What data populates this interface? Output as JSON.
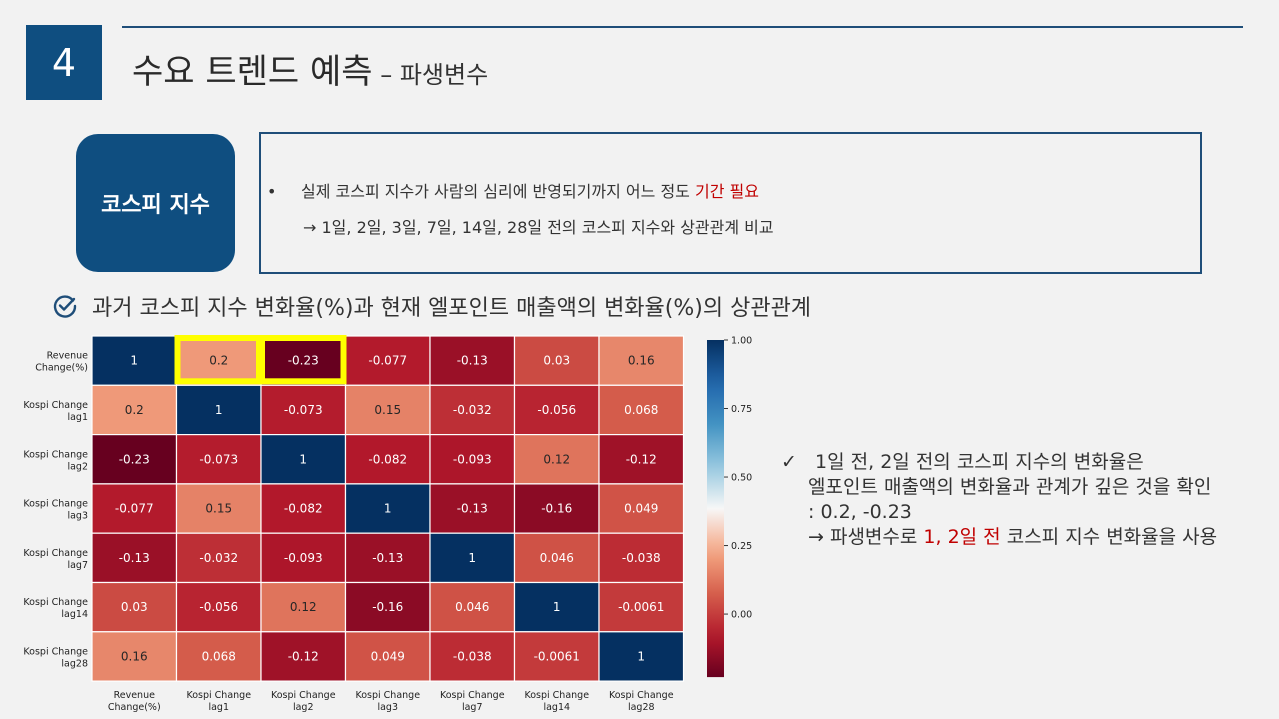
{
  "header": {
    "section_number": "4",
    "title_main": "수요 트렌드 예측",
    "title_sub": " – 파생변수"
  },
  "topic": {
    "label": "코스피 지수"
  },
  "note": {
    "bullet": "•",
    "line1_prefix": "실제 코스피 지수가 사람의 심리에 반영되기까지 어느 정도 ",
    "line1_highlight": "기간 필요",
    "line2": "→ 1일, 2일, 3일, 7일, 14일, 28일 전의 코스피 지수와 상관관계 비교"
  },
  "section_heading": "과거 코스피 지수 변화율(%)과 현재 엘포인트 매출액의 변화율(%)의 상관관계",
  "findings": {
    "check": "✓",
    "line1": "1일 전, 2일 전의 코스피 지수의 변화율은",
    "line2": "엘포인트 매출액의 변화율과 관계가 깊은 것을 확인",
    "line3": ": 0.2, -0.23",
    "line4_prefix": "→ 파생변수로 ",
    "line4_highlight": "1, 2일 전",
    "line4_suffix": " 코스피 지수 변화율을 사용"
  },
  "colors": {
    "brand": "#0f4e80",
    "accent_red": "#c00000",
    "highlight_box": "#ffff00"
  },
  "chart_data": {
    "type": "heatmap",
    "row_labels": [
      [
        "Revenue",
        "Change(%)"
      ],
      [
        "Kospi Change",
        "lag1"
      ],
      [
        "Kospi Change",
        "lag2"
      ],
      [
        "Kospi Change",
        "lag3"
      ],
      [
        "Kospi Change",
        "lag7"
      ],
      [
        "Kospi Change",
        "lag14"
      ],
      [
        "Kospi Change",
        "lag28"
      ]
    ],
    "col_labels": [
      [
        "Revenue",
        "Change(%)"
      ],
      [
        "Kospi Change",
        "lag1"
      ],
      [
        "Kospi Change",
        "lag2"
      ],
      [
        "Kospi Change",
        "lag3"
      ],
      [
        "Kospi Change",
        "lag7"
      ],
      [
        "Kospi Change",
        "lag14"
      ],
      [
        "Kospi Change",
        "lag28"
      ]
    ],
    "values": [
      [
        1,
        0.2,
        -0.23,
        -0.077,
        -0.13,
        0.03,
        0.16
      ],
      [
        0.2,
        1,
        -0.073,
        0.15,
        -0.032,
        -0.056,
        0.068
      ],
      [
        -0.23,
        -0.073,
        1,
        -0.082,
        -0.093,
        0.12,
        -0.12
      ],
      [
        -0.077,
        0.15,
        -0.082,
        1,
        -0.13,
        -0.16,
        0.049
      ],
      [
        -0.13,
        -0.032,
        -0.093,
        -0.13,
        1,
        0.046,
        -0.038
      ],
      [
        0.03,
        -0.056,
        0.12,
        -0.16,
        0.046,
        1,
        -0.0061
      ],
      [
        0.16,
        0.068,
        -0.12,
        0.049,
        -0.038,
        -0.0061,
        1
      ]
    ],
    "value_labels": [
      [
        "1",
        "0.2",
        "-0.23",
        "-0.077",
        "-0.13",
        "0.03",
        "0.16"
      ],
      [
        "0.2",
        "1",
        "-0.073",
        "0.15",
        "-0.032",
        "-0.056",
        "0.068"
      ],
      [
        "-0.23",
        "-0.073",
        "1",
        "-0.082",
        "-0.093",
        "0.12",
        "-0.12"
      ],
      [
        "-0.077",
        "0.15",
        "-0.082",
        "1",
        "-0.13",
        "-0.16",
        "0.049"
      ],
      [
        "-0.13",
        "-0.032",
        "-0.093",
        "-0.13",
        "1",
        "0.046",
        "-0.038"
      ],
      [
        "0.03",
        "-0.056",
        "0.12",
        "-0.16",
        "0.046",
        "1",
        "-0.0061"
      ],
      [
        "0.16",
        "0.068",
        "-0.12",
        "0.049",
        "-0.038",
        "-0.0061",
        "1"
      ]
    ],
    "highlighted_cells": [
      [
        0,
        1
      ],
      [
        0,
        2
      ]
    ],
    "colorbar": {
      "min": -0.23,
      "max": 1.0,
      "ticks": [
        1.0,
        0.75,
        0.5,
        0.25,
        0.0
      ],
      "tick_labels": [
        "1.00",
        "0.75",
        "0.50",
        "0.25",
        "0.00"
      ]
    }
  }
}
